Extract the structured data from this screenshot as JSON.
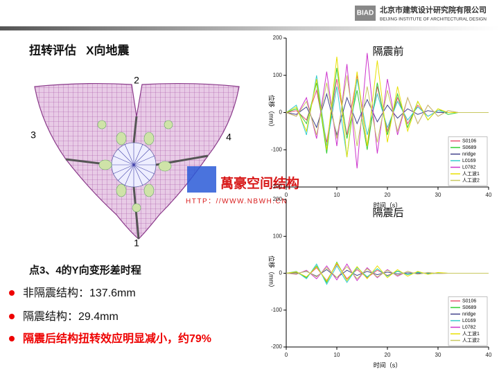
{
  "header": {
    "logo": "BIAD",
    "company": "北京市建筑设计研究院有限公司",
    "company_en": "BEIJING INSTITUTE OF ARCHITECTURAL DESIGN"
  },
  "slide_title": "扭转评估   X向地震",
  "diagram_labels": [
    "1",
    "2",
    "3",
    "4"
  ],
  "watermark": {
    "name": "萬豪空间结构",
    "url": "HTTP：//WWW.NBWH.CN"
  },
  "subheading": "点3、4的Y向变形差时程",
  "bullets": [
    "非隔震结构：137.6mm",
    "隔震结构：29.4mm",
    "隔震后结构扭转效应明显减小，约79%"
  ],
  "chart_data": [
    {
      "type": "line",
      "title": "隔震前",
      "xlabel": "时间（s）",
      "ylabel": "位移（mm）",
      "xlim": [
        0,
        40
      ],
      "ylim": [
        -200,
        200
      ],
      "xticks": [
        0,
        10,
        20,
        30,
        40
      ],
      "yticks": [
        -200,
        -100,
        0,
        100,
        200
      ],
      "legend": "lower right",
      "x": [
        0,
        2,
        4,
        6,
        8,
        10,
        12,
        14,
        16,
        18,
        20,
        22,
        24,
        26,
        28,
        30,
        32,
        34,
        36,
        38,
        40
      ],
      "series": [
        {
          "name": "S0106",
          "color": "#e8506e",
          "values": [
            0,
            5,
            -20,
            60,
            -80,
            90,
            -60,
            100,
            -90,
            70,
            -50,
            40,
            -30,
            20,
            -10,
            5,
            0,
            0,
            0,
            0,
            0
          ]
        },
        {
          "name": "S0689",
          "color": "#33cc33",
          "values": [
            0,
            10,
            -30,
            80,
            -110,
            120,
            -70,
            60,
            -100,
            80,
            -60,
            50,
            -40,
            30,
            -20,
            10,
            -5,
            0,
            0,
            0,
            0
          ]
        },
        {
          "name": "nridge",
          "color": "#40408a",
          "values": [
            0,
            -5,
            15,
            -40,
            50,
            -60,
            40,
            -30,
            35,
            -25,
            20,
            -15,
            10,
            -5,
            5,
            0,
            0,
            0,
            0,
            0,
            0
          ]
        },
        {
          "name": "L0169",
          "color": "#33cccc",
          "values": [
            0,
            20,
            -60,
            100,
            -90,
            70,
            -120,
            90,
            -60,
            50,
            -40,
            30,
            -20,
            15,
            -10,
            5,
            0,
            0,
            0,
            0,
            0
          ]
        },
        {
          "name": "L0782",
          "color": "#cc33cc",
          "values": [
            0,
            -10,
            40,
            -70,
            110,
            -90,
            130,
            -150,
            160,
            -110,
            90,
            -60,
            40,
            -30,
            20,
            -10,
            5,
            0,
            0,
            0,
            0
          ]
        },
        {
          "name": "人工波1",
          "color": "#e8e000",
          "values": [
            0,
            15,
            -50,
            90,
            -100,
            150,
            -120,
            110,
            -90,
            140,
            -80,
            70,
            -50,
            30,
            -20,
            10,
            0,
            0,
            0,
            0,
            0
          ]
        },
        {
          "name": "人工波2",
          "color": "#c8c860",
          "values": [
            0,
            -10,
            30,
            -60,
            80,
            -70,
            100,
            -90,
            70,
            -80,
            60,
            -50,
            40,
            -30,
            20,
            -10,
            5,
            0,
            0,
            0,
            0
          ]
        }
      ]
    },
    {
      "type": "line",
      "title": "隔震后",
      "xlabel": "时间（s）",
      "ylabel": "位移（mm）",
      "xlim": [
        0,
        40
      ],
      "ylim": [
        -200,
        200
      ],
      "xticks": [
        0,
        10,
        20,
        30,
        40
      ],
      "yticks": [
        -200,
        -100,
        0,
        100,
        200
      ],
      "legend": "lower right",
      "x": [
        0,
        2,
        4,
        6,
        8,
        10,
        12,
        14,
        16,
        18,
        20,
        22,
        24,
        26,
        28,
        30,
        32,
        34,
        36,
        38,
        40
      ],
      "series": [
        {
          "name": "S0106",
          "color": "#e8506e",
          "values": [
            0,
            2,
            -10,
            15,
            -20,
            25,
            -15,
            10,
            -12,
            8,
            -6,
            5,
            -3,
            2,
            -1,
            0,
            0,
            0,
            0,
            0,
            0
          ]
        },
        {
          "name": "S0689",
          "color": "#33cc33",
          "values": [
            0,
            3,
            -12,
            20,
            -25,
            30,
            -20,
            15,
            -10,
            12,
            -8,
            6,
            -4,
            3,
            -2,
            1,
            0,
            0,
            0,
            0,
            0
          ]
        },
        {
          "name": "nridge",
          "color": "#40408a",
          "values": [
            0,
            -1,
            5,
            -8,
            10,
            -12,
            8,
            -6,
            5,
            -4,
            3,
            -2,
            1,
            0,
            0,
            0,
            0,
            0,
            0,
            0,
            0
          ]
        },
        {
          "name": "L0169",
          "color": "#33cccc",
          "values": [
            0,
            5,
            -15,
            25,
            -30,
            20,
            -25,
            15,
            -10,
            12,
            -8,
            5,
            -3,
            2,
            -1,
            0,
            0,
            0,
            0,
            0,
            0
          ]
        },
        {
          "name": "L0782",
          "color": "#cc33cc",
          "values": [
            0,
            -3,
            8,
            -15,
            20,
            -18,
            25,
            -20,
            15,
            -12,
            10,
            -8,
            5,
            -3,
            2,
            -1,
            0,
            0,
            0,
            0,
            0
          ]
        },
        {
          "name": "人工波1",
          "color": "#e8e000",
          "values": [
            0,
            4,
            -10,
            18,
            -22,
            28,
            -20,
            18,
            -15,
            20,
            -12,
            10,
            -8,
            5,
            -3,
            2,
            0,
            0,
            0,
            0,
            0
          ]
        },
        {
          "name": "人工波2",
          "color": "#c8c860",
          "values": [
            0,
            -2,
            6,
            -10,
            15,
            -12,
            18,
            -15,
            12,
            -10,
            8,
            -6,
            5,
            -3,
            2,
            -1,
            0,
            0,
            0,
            0,
            0
          ]
        }
      ]
    }
  ]
}
